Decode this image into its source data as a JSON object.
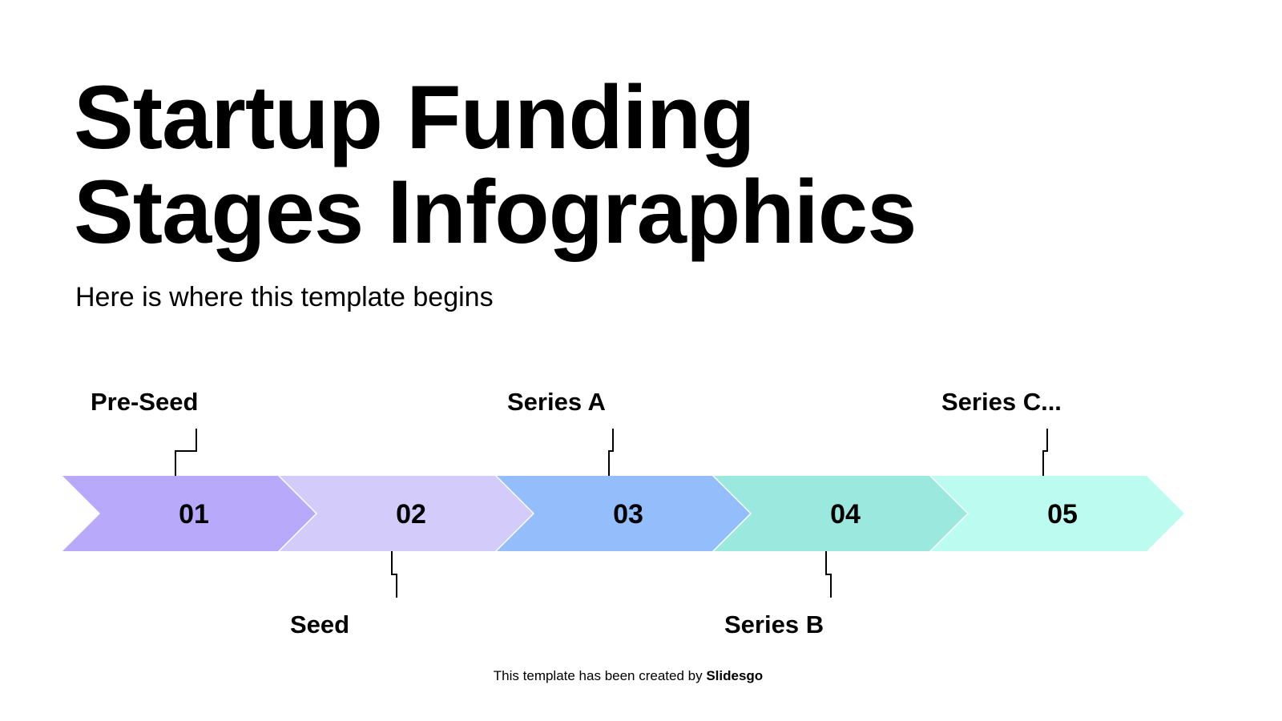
{
  "title_line1": "Startup Funding",
  "title_line2": "Stages Infographics",
  "subtitle": "Here is where this template begins",
  "stages": [
    {
      "number": "01",
      "label": "Pre-Seed",
      "color": "#b8a9fb",
      "label_position": "above"
    },
    {
      "number": "02",
      "label": "Seed",
      "color": "#d3cbf9",
      "label_position": "below"
    },
    {
      "number": "03",
      "label": "Series A",
      "color": "#93bdfb",
      "label_position": "above"
    },
    {
      "number": "04",
      "label": "Series B",
      "color": "#9be9de",
      "label_position": "below"
    },
    {
      "number": "05",
      "label": "Series C...",
      "color": "#bcfcf0",
      "label_position": "above"
    }
  ],
  "footer": {
    "text": "This template has been created by ",
    "brand": "Slidesgo"
  }
}
